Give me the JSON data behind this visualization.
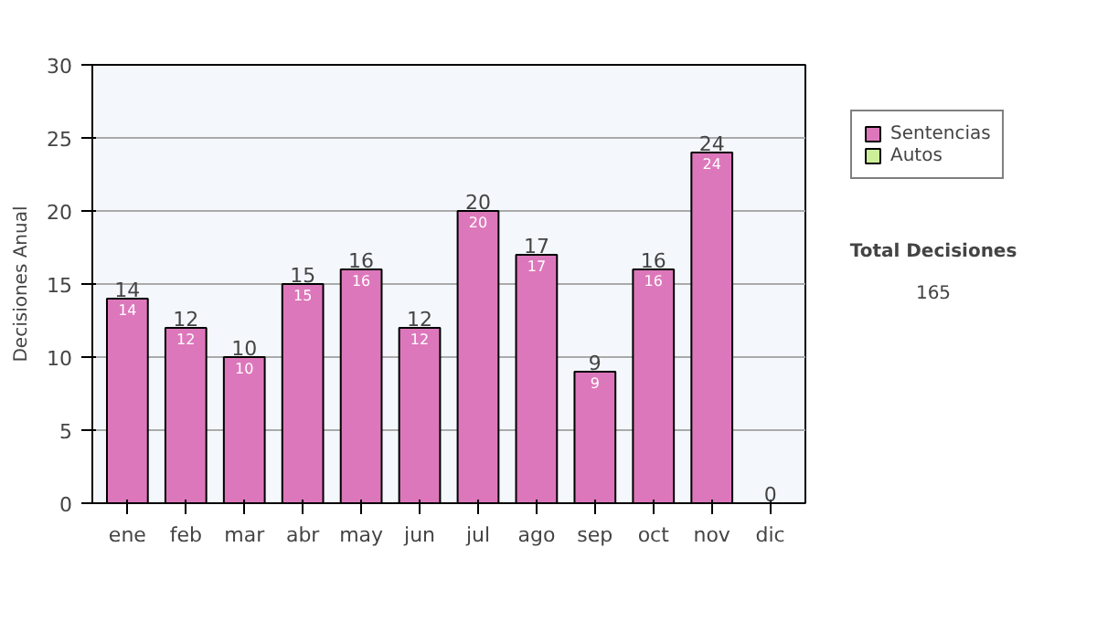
{
  "chart_data": {
    "type": "bar",
    "ylabel": "Decisiones Anual",
    "categories": [
      "ene",
      "feb",
      "mar",
      "abr",
      "may",
      "jun",
      "jul",
      "ago",
      "sep",
      "oct",
      "nov",
      "dic"
    ],
    "stacked": true,
    "series": [
      {
        "name": "Sentencias",
        "color": "#dd77bb",
        "values": [
          14,
          12,
          10,
          15,
          16,
          12,
          20,
          17,
          9,
          16,
          24,
          0
        ],
        "value_labels": [
          "14",
          "12",
          "10",
          "15",
          "16",
          "12",
          "20",
          "17",
          "9",
          "16",
          "24",
          null
        ]
      },
      {
        "name": "Autos",
        "color": "#ccee99",
        "values": [
          0,
          0,
          0,
          0,
          0,
          0,
          0,
          0,
          0,
          0,
          0,
          0
        ]
      }
    ],
    "totals": [
      "14",
      "12",
      "10",
      "15",
      "16",
      "12",
      "20",
      "17",
      "9",
      "16",
      "24",
      "0"
    ],
    "ylim": [
      0,
      30
    ],
    "yticks": [
      0,
      5,
      10,
      15,
      20,
      25,
      30
    ],
    "grid": "y",
    "legend": "right",
    "annotations": [
      "Total Decisiones",
      "165"
    ]
  }
}
